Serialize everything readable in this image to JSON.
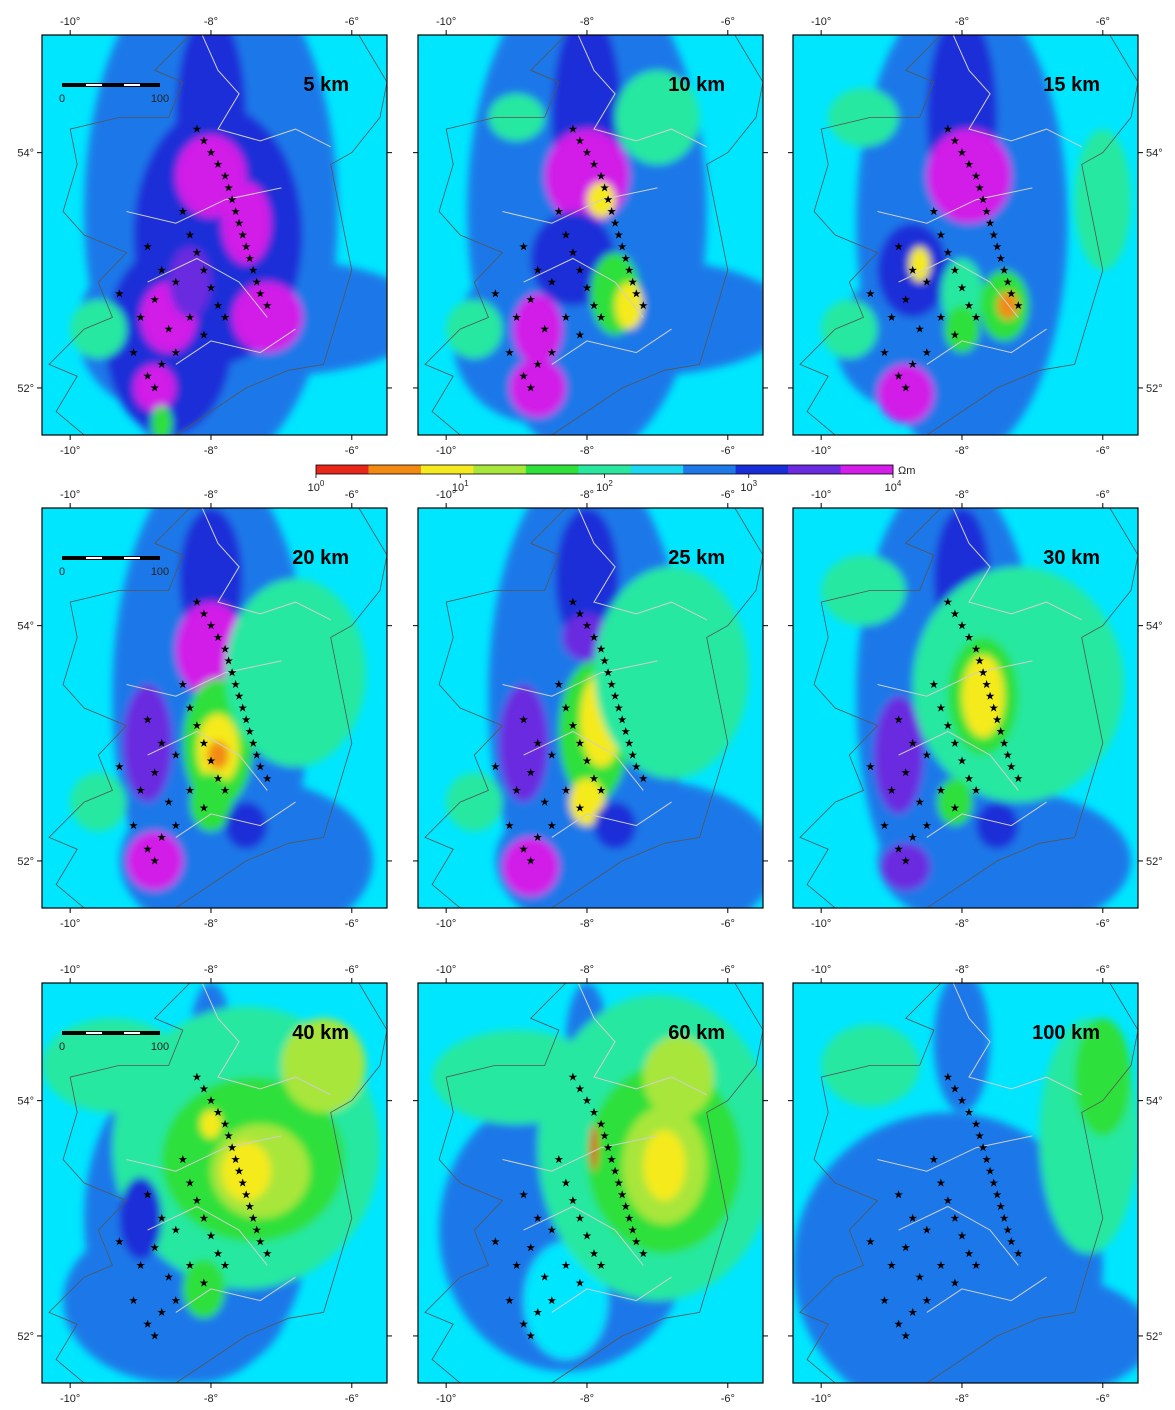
{
  "figure": {
    "panels": [
      {
        "depth_label": "5 km",
        "scale_bar": {
          "start": "0",
          "end": "100"
        }
      },
      {
        "depth_label": "10 km"
      },
      {
        "depth_label": "15 km"
      },
      {
        "depth_label": "20 km",
        "scale_bar": {
          "start": "0",
          "end": "100"
        }
      },
      {
        "depth_label": "25 km"
      },
      {
        "depth_label": "30 km"
      },
      {
        "depth_label": "40 km",
        "scale_bar": {
          "start": "0",
          "end": "100"
        }
      },
      {
        "depth_label": "60 km"
      },
      {
        "depth_label": "100 km"
      }
    ],
    "lon_ticks": [
      "-10°",
      "-8°",
      "-6°"
    ],
    "lat_ticks": [
      "54°",
      "52°"
    ],
    "colorbar": {
      "unit": "Ωm",
      "tick_labels": [
        "10",
        "10",
        "10",
        "10",
        "10"
      ],
      "tick_exponents": [
        "0",
        "1",
        "2",
        "3",
        "4"
      ],
      "colors": [
        "#e8261a",
        "#f28a12",
        "#f5ea1f",
        "#a8e63a",
        "#2ee03a",
        "#28e8a0",
        "#1ad8f0",
        "#1e78e8",
        "#1a2ed8",
        "#6a2ae0",
        "#d21ee8"
      ]
    },
    "map_colors": {
      "background": "#00e6ff",
      "blue": "#1e78e8",
      "navy": "#1a2ed8",
      "violet": "#6a2ae0",
      "magenta": "#d21ee8",
      "cyan_green": "#28e8a0",
      "green": "#2ee03a",
      "yellow_green": "#a8e63a",
      "yellow": "#f5ea1f",
      "orange": "#f28a12",
      "red": "#e8261a"
    }
  }
}
